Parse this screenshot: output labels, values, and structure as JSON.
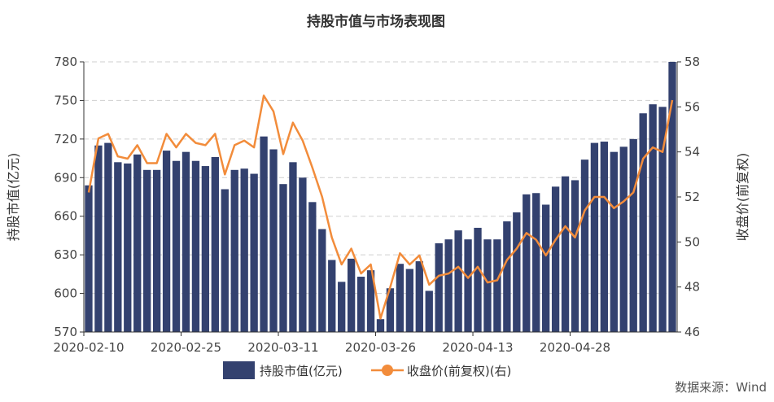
{
  "chart_data": {
    "type": "bar+line",
    "title": "持股市值与市场表现图",
    "ylabel_left": "持股市值(亿元)",
    "ylabel_right": "收盘价(前复权)",
    "source": "数据来源：Wind",
    "left_axis": {
      "min": 570,
      "max": 780,
      "ticks": [
        570,
        600,
        630,
        660,
        690,
        720,
        750,
        780
      ]
    },
    "right_axis": {
      "min": 46,
      "max": 58,
      "ticks": [
        46,
        48,
        50,
        52,
        54,
        56,
        58
      ]
    },
    "x_tick_labels": [
      {
        "index": 0,
        "label": "2020-02-10"
      },
      {
        "index": 10,
        "label": "2020-02-25"
      },
      {
        "index": 20,
        "label": "2020-03-11"
      },
      {
        "index": 30,
        "label": "2020-03-26"
      },
      {
        "index": 40,
        "label": "2020-04-13"
      },
      {
        "index": 50,
        "label": "2020-04-28"
      }
    ],
    "series": [
      {
        "name": "持股市值(亿元)",
        "type": "bar",
        "axis": "left",
        "color": "#33416f",
        "values": [
          684,
          715,
          717,
          702,
          701,
          708,
          696,
          696,
          711,
          703,
          710,
          703,
          699,
          706,
          681,
          696,
          697,
          693,
          722,
          712,
          685,
          702,
          690,
          671,
          650,
          626,
          609,
          627,
          613,
          618,
          580,
          604,
          623,
          619,
          625,
          602,
          639,
          642,
          649,
          642,
          651,
          642,
          642,
          656,
          663,
          677,
          678,
          669,
          683,
          691,
          688,
          704,
          717,
          718,
          710,
          714,
          720,
          740,
          747,
          745,
          780
        ]
      },
      {
        "name": "收盘价(前复权)(右)",
        "type": "line",
        "axis": "right",
        "color": "#f28c3b",
        "values": [
          52.2,
          54.6,
          54.8,
          53.8,
          53.7,
          54.3,
          53.5,
          53.5,
          54.8,
          54.2,
          54.8,
          54.4,
          54.3,
          54.8,
          53.0,
          54.3,
          54.5,
          54.2,
          56.5,
          55.8,
          53.9,
          55.3,
          54.5,
          53.3,
          52.0,
          50.2,
          49.0,
          49.7,
          48.6,
          49.0,
          46.6,
          48.0,
          49.5,
          49.0,
          49.4,
          48.1,
          48.5,
          48.6,
          48.9,
          48.4,
          48.9,
          48.2,
          48.3,
          49.2,
          49.7,
          50.4,
          50.1,
          49.4,
          50.1,
          50.7,
          50.2,
          51.4,
          52.0,
          52.0,
          51.5,
          51.8,
          52.2,
          53.7,
          54.2,
          54.0,
          56.3
        ]
      }
    ],
    "legend_position": "bottom-center",
    "grid": true
  }
}
